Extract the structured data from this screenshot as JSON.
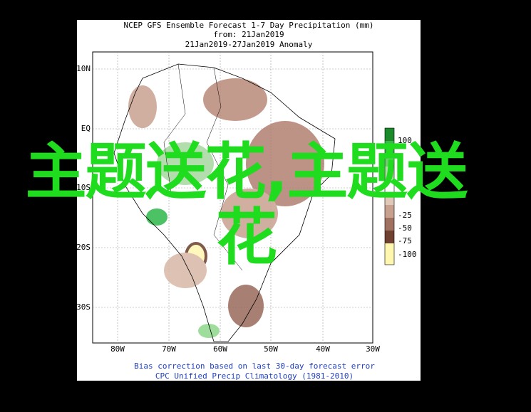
{
  "header": {
    "lines": [
      "NCEP GFS Ensemble Forecast 1-7 Day Precipitation (mm)",
      "from: 21Jan2019",
      "21Jan2019-27Jan2019 Anomaly"
    ]
  },
  "map": {
    "lat_labels": [
      "10N",
      "EQ",
      "10S",
      "20S",
      "30S"
    ],
    "lon_labels": [
      "80W",
      "70W",
      "60W",
      "50W",
      "40W",
      "30W"
    ]
  },
  "legend": {
    "labels": [
      "100",
      "-25",
      "-50",
      "-75",
      "-100"
    ]
  },
  "footer": {
    "lines": [
      "Bias correction based on last 30-day forecast error",
      "CPC Unified Precip Climatology (1981-2010)"
    ]
  },
  "overlay": {
    "text": "主题送花,主题送花"
  }
}
